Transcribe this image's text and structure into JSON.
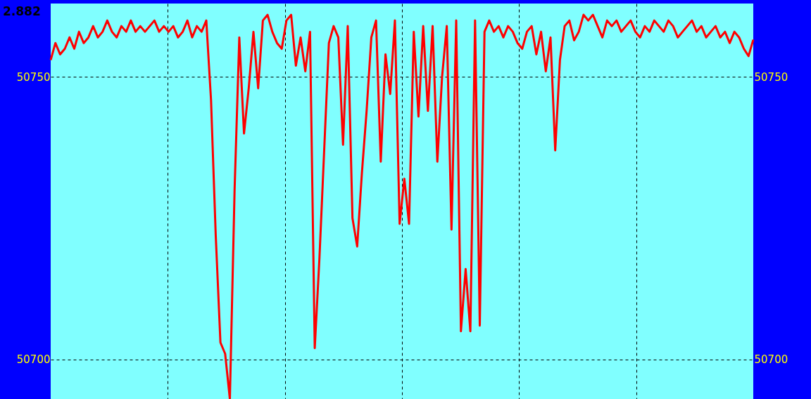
{
  "chart_data": {
    "type": "line",
    "annotations": [
      "2.882"
    ],
    "categories": [
      null,
      null,
      null,
      null,
      null,
      null,
      null,
      null,
      null,
      null,
      null,
      null,
      null,
      null,
      null,
      null,
      null,
      null,
      null,
      null,
      null,
      null,
      null,
      null,
      null,
      null,
      null,
      null,
      null,
      null,
      null,
      null,
      null,
      null,
      null,
      null,
      null,
      null,
      null,
      null,
      null,
      null,
      null,
      null,
      null,
      null,
      null,
      null,
      null,
      null,
      null,
      null,
      null,
      null,
      null,
      null,
      null,
      null,
      null,
      null,
      null,
      null,
      null,
      null,
      null,
      null,
      null,
      null,
      null,
      null,
      null,
      null,
      null,
      null,
      null,
      null,
      null,
      null,
      null,
      null,
      null,
      null,
      null,
      null,
      null,
      null,
      null,
      null,
      null,
      null,
      null,
      null,
      null,
      null,
      null,
      null,
      null,
      null,
      null,
      null,
      null,
      null,
      null,
      null,
      null,
      null,
      null,
      null,
      null,
      null,
      null,
      null,
      null,
      null,
      null,
      null,
      null,
      null,
      null,
      null,
      null,
      null,
      null,
      null,
      null,
      null,
      null,
      null,
      null,
      null,
      null,
      null,
      null,
      null,
      null,
      null,
      null,
      null,
      null,
      null,
      null,
      null,
      null,
      null,
      null,
      null,
      null,
      null,
      null,
      null
    ],
    "series": [
      {
        "color": "#ff0000",
        "values": [
          50753,
          50756,
          50754,
          50755,
          50757,
          50755,
          50758,
          50756,
          50757,
          50759,
          50757,
          50758,
          50760,
          50758,
          50757,
          50759,
          50758,
          50760,
          50758,
          50759,
          50758,
          50759,
          50760,
          50758,
          50759,
          50758,
          50759,
          50757,
          50758,
          50760,
          50757,
          50759,
          50758,
          50760,
          50746,
          50722,
          50703,
          50701,
          50693,
          50730,
          50757,
          50740,
          50748,
          50758,
          50748,
          50760,
          50761,
          50758,
          50756,
          50755,
          50760,
          50761,
          50752,
          50757,
          50751,
          50758,
          50702,
          50718,
          50737,
          50756,
          50759,
          50757,
          50738,
          50759,
          50725,
          50720,
          50733,
          50744,
          50757,
          50760,
          50735,
          50754,
          50747,
          50760,
          50724,
          50732,
          50724,
          50758,
          50743,
          50759,
          50744,
          50759,
          50735,
          50750,
          50759,
          50723,
          50760,
          50705,
          50716,
          50705,
          50760,
          50706,
          50758,
          50760,
          50758,
          50759,
          50757,
          50759,
          50758,
          50756,
          50755,
          50758,
          50759,
          50754,
          50758,
          50751,
          50757,
          50737,
          50753,
          50759,
          50760,
          50756.5,
          50758,
          50761,
          50760,
          50761,
          50759,
          50757,
          50760,
          50759,
          50760,
          50758,
          50759,
          50760,
          50758,
          50757,
          50759,
          50758,
          50760,
          50759,
          50758,
          50760,
          50759,
          50757,
          50758,
          50759,
          50760,
          50758,
          50759,
          50757,
          50758,
          50759,
          50757,
          50758,
          50756,
          50758,
          50757,
          50755,
          50753.7,
          50756.6
        ]
      }
    ],
    "ylim": [
      50693,
      50763
    ],
    "yticks": [
      50700,
      50750
    ],
    "y2lim": [
      50693,
      50763
    ],
    "y2ticks": [
      50700,
      50750
    ],
    "tick_labels": "y",
    "grid": true,
    "marker": "none",
    "line_style": "solid"
  }
}
